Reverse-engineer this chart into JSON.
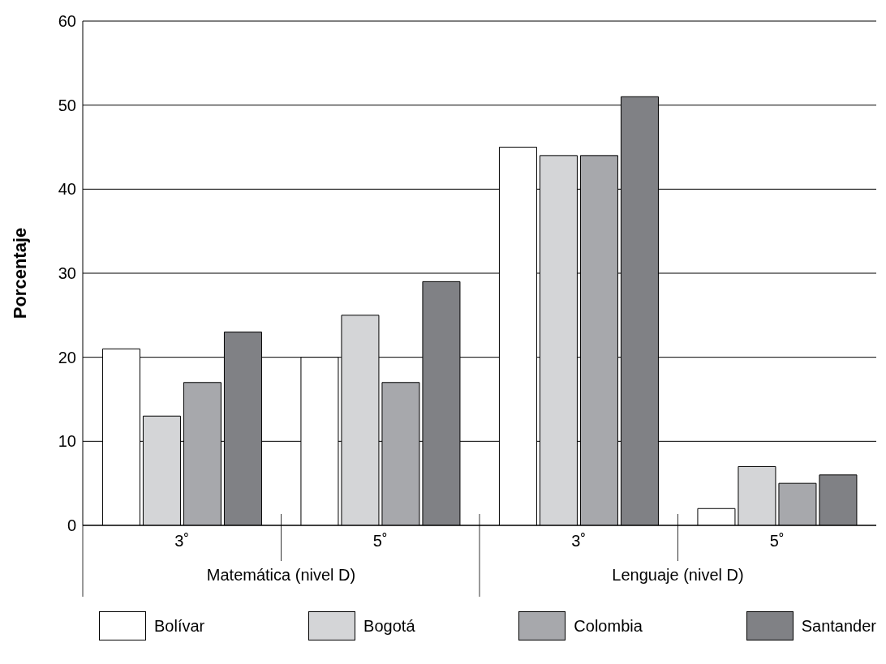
{
  "chart_data": {
    "type": "bar",
    "ylabel": "Porcentaje",
    "categories": [
      "3˚",
      "5˚",
      "3˚",
      "5˚"
    ],
    "annotations": [
      "Matemática (nivel D)",
      "Lenguaje (nivel D)"
    ],
    "series": [
      {
        "name": "Bolívar",
        "color": "#ffffff",
        "values": [
          21,
          20,
          45,
          2
        ]
      },
      {
        "name": "Bogotá",
        "color": "#d4d5d7",
        "values": [
          13,
          25,
          44,
          7
        ]
      },
      {
        "name": "Colombia",
        "color": "#a7a8ac",
        "values": [
          17,
          17,
          44,
          5
        ]
      },
      {
        "name": "Santander",
        "color": "#808185",
        "values": [
          23,
          29,
          51,
          6
        ]
      }
    ],
    "ylim": [
      0,
      60
    ],
    "yticks": [
      0,
      10,
      20,
      30,
      40,
      50,
      60
    ],
    "grid": "y",
    "legend": "bottom"
  }
}
